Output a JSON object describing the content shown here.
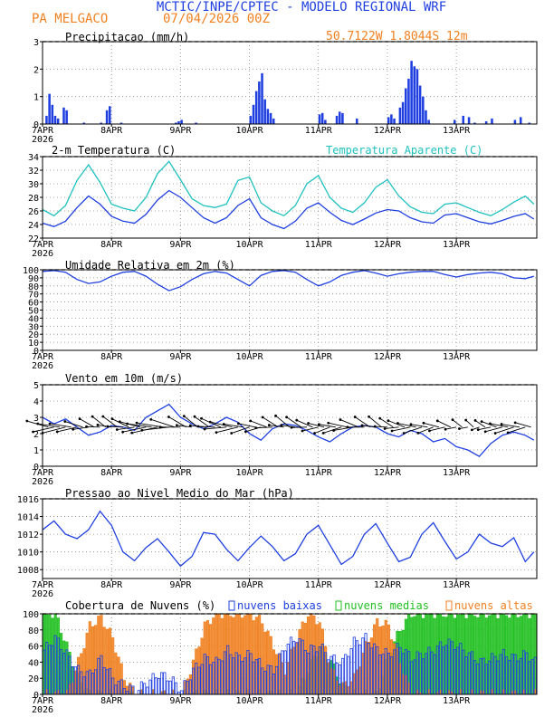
{
  "header": {
    "title": "MCTIC/INPE/CPTEC - MODELO REGIONAL WRF",
    "location": "PA MELGACO",
    "init": "07/04/2026 00Z",
    "coords": "50.7122W 1.8044S 12m"
  },
  "x_axis": {
    "ticks": [
      "7APR",
      "8APR",
      "9APR",
      "10APR",
      "11APR",
      "12APR",
      "13APR"
    ],
    "year": "2026"
  },
  "colors": {
    "blue": "#1f3fe0",
    "cyan": "#20c0c0",
    "orange": "#f08020",
    "green": "#20c020",
    "title": "#1f3fe0",
    "orange_text": "#f08020"
  },
  "chart_data": [
    {
      "type": "bar",
      "title": "Precipitacao (mm/h)",
      "ylim": [
        0,
        3
      ],
      "yticks": [
        0,
        1,
        2,
        3
      ],
      "hours_start": 0,
      "values": [
        [
          1,
          0.3
        ],
        [
          2,
          1.1
        ],
        [
          3,
          0.7
        ],
        [
          4,
          0.3
        ],
        [
          5,
          0.2
        ],
        [
          7,
          0.6
        ],
        [
          8,
          0.5
        ],
        [
          14,
          0.05
        ],
        [
          20,
          0.05
        ],
        [
          22,
          0.5
        ],
        [
          23,
          0.65
        ],
        [
          27,
          0.05
        ],
        [
          46,
          0.05
        ],
        [
          47,
          0.1
        ],
        [
          48,
          0.15
        ],
        [
          53,
          0.05
        ],
        [
          72,
          0.3
        ],
        [
          73,
          0.7
        ],
        [
          74,
          1.2
        ],
        [
          75,
          1.55
        ],
        [
          76,
          1.85
        ],
        [
          77,
          0.9
        ],
        [
          78,
          0.55
        ],
        [
          79,
          0.4
        ],
        [
          80,
          0.2
        ],
        [
          96,
          0.35
        ],
        [
          97,
          0.4
        ],
        [
          98,
          0.15
        ],
        [
          102,
          0.3
        ],
        [
          103,
          0.45
        ],
        [
          104,
          0.4
        ],
        [
          109,
          0.2
        ],
        [
          120,
          0.25
        ],
        [
          121,
          0.35
        ],
        [
          122,
          0.2
        ],
        [
          124,
          0.6
        ],
        [
          125,
          0.8
        ],
        [
          126,
          1.3
        ],
        [
          127,
          1.65
        ],
        [
          128,
          2.3
        ],
        [
          129,
          2.1
        ],
        [
          130,
          2.0
        ],
        [
          131,
          1.4
        ],
        [
          132,
          1.0
        ],
        [
          133,
          0.5
        ],
        [
          134,
          0.15
        ],
        [
          143,
          0.15
        ],
        [
          146,
          0.3
        ],
        [
          148,
          0.25
        ],
        [
          150,
          0.05
        ],
        [
          154,
          0.1
        ],
        [
          156,
          0.2
        ],
        [
          164,
          0.15
        ],
        [
          166,
          0.25
        ],
        [
          169,
          0.05
        ]
      ]
    },
    {
      "type": "line",
      "title": "2-m Temperatura (C)",
      "title2": "Temperatura Aparente (C)",
      "ylim": [
        22,
        34
      ],
      "yticks": [
        22,
        24,
        26,
        28,
        30,
        32,
        34
      ],
      "series": [
        {
          "name": "2-m Temperatura (C)",
          "color_key": "blue",
          "x": [
            0,
            4,
            8,
            12,
            16,
            20,
            24,
            28,
            32,
            36,
            40,
            44,
            48,
            52,
            56,
            60,
            64,
            68,
            72,
            76,
            80,
            84,
            88,
            92,
            96,
            100,
            104,
            108,
            112,
            116,
            120,
            124,
            128,
            132,
            136,
            140,
            144,
            148,
            152,
            156,
            160,
            164,
            168,
            171
          ],
          "y": [
            24.2,
            23.7,
            24.5,
            26.5,
            28.2,
            27.0,
            25.2,
            24.5,
            24.2,
            25.5,
            27.6,
            29.0,
            28.0,
            26.5,
            25.0,
            24.2,
            25.0,
            26.8,
            27.8,
            25.0,
            24.0,
            23.4,
            24.5,
            26.4,
            27.2,
            25.8,
            24.6,
            24.0,
            24.8,
            25.7,
            26.2,
            26.0,
            25.0,
            24.4,
            24.2,
            25.4,
            25.6,
            25.0,
            24.4,
            24.1,
            24.6,
            25.2,
            25.6,
            24.8
          ]
        },
        {
          "name": "Temperatura Aparente (C)",
          "color_key": "cyan",
          "x": [
            0,
            4,
            8,
            12,
            16,
            20,
            24,
            28,
            32,
            36,
            40,
            44,
            48,
            52,
            56,
            60,
            64,
            68,
            72,
            76,
            80,
            84,
            88,
            92,
            96,
            100,
            104,
            108,
            112,
            116,
            120,
            124,
            128,
            132,
            136,
            140,
            144,
            148,
            152,
            156,
            160,
            164,
            168,
            171
          ],
          "y": [
            26.2,
            25.3,
            26.8,
            30.5,
            32.8,
            30.2,
            27.0,
            26.4,
            26.0,
            28.0,
            31.5,
            33.3,
            30.6,
            27.8,
            26.8,
            26.5,
            27.0,
            30.5,
            31.0,
            27.2,
            26.0,
            25.3,
            26.8,
            30.0,
            31.2,
            28.0,
            26.4,
            25.8,
            27.2,
            29.5,
            30.6,
            28.2,
            26.6,
            25.8,
            25.6,
            27.0,
            27.2,
            26.5,
            25.8,
            25.3,
            26.2,
            27.3,
            28.2,
            27.0
          ]
        }
      ]
    },
    {
      "type": "line",
      "title": "Umidade Relativa em 2m (%)",
      "ylim": [
        0,
        100
      ],
      "yticks": [
        0,
        10,
        20,
        30,
        40,
        50,
        60,
        70,
        80,
        90,
        100
      ],
      "series": [
        {
          "name": "Umidade Relativa em 2m (%)",
          "color_key": "blue",
          "x": [
            0,
            4,
            8,
            12,
            16,
            20,
            24,
            28,
            32,
            36,
            40,
            44,
            48,
            52,
            56,
            60,
            64,
            68,
            72,
            76,
            80,
            84,
            88,
            92,
            96,
            100,
            104,
            108,
            112,
            116,
            120,
            124,
            128,
            132,
            136,
            140,
            144,
            148,
            152,
            156,
            160,
            164,
            168,
            171
          ],
          "y": [
            98,
            99,
            97,
            88,
            83,
            85,
            92,
            97,
            98,
            92,
            82,
            74,
            79,
            88,
            95,
            98,
            96,
            88,
            80,
            93,
            98,
            99,
            97,
            88,
            80,
            85,
            93,
            97,
            99,
            96,
            92,
            95,
            97,
            98,
            98,
            94,
            91,
            94,
            96,
            97,
            95,
            90,
            89,
            92
          ]
        }
      ]
    },
    {
      "type": "line",
      "title": "Vento em 10m (m/s)",
      "ylim": [
        0,
        5
      ],
      "yticks": [
        0,
        1,
        2,
        3,
        4,
        5
      ],
      "series": [
        {
          "name": "Vento em 10m (m/s)",
          "color_key": "blue",
          "x": [
            0,
            4,
            8,
            12,
            16,
            20,
            24,
            28,
            32,
            36,
            40,
            44,
            48,
            52,
            56,
            60,
            64,
            68,
            72,
            76,
            80,
            84,
            88,
            92,
            96,
            100,
            104,
            108,
            112,
            116,
            120,
            124,
            128,
            132,
            136,
            140,
            144,
            148,
            152,
            156,
            160,
            164,
            168,
            171
          ],
          "y": [
            3.0,
            2.6,
            2.9,
            2.4,
            1.9,
            2.1,
            2.5,
            2.4,
            2.2,
            3.0,
            3.4,
            3.8,
            3.0,
            2.6,
            2.3,
            2.6,
            3.0,
            2.7,
            2.0,
            1.6,
            2.3,
            2.6,
            2.5,
            2.2,
            1.8,
            1.5,
            2.0,
            2.4,
            2.5,
            2.4,
            2.0,
            1.8,
            2.2,
            2.0,
            1.5,
            1.7,
            1.2,
            1.0,
            0.6,
            1.4,
            1.9,
            2.1,
            1.9,
            1.6
          ]
        }
      ]
    },
    {
      "type": "line",
      "title": "Pressao ao Nivel Medio do Mar (hPa)",
      "ylim": [
        1007,
        1016
      ],
      "yticks": [
        1008,
        1010,
        1012,
        1014,
        1016
      ],
      "series": [
        {
          "name": "Pressao ao Nivel Medio do Mar (hPa)",
          "color_key": "blue",
          "x": [
            0,
            4,
            8,
            12,
            16,
            20,
            24,
            28,
            32,
            36,
            40,
            44,
            48,
            52,
            56,
            60,
            64,
            68,
            72,
            76,
            80,
            84,
            88,
            92,
            96,
            100,
            104,
            108,
            112,
            116,
            120,
            124,
            128,
            132,
            136,
            140,
            144,
            148,
            152,
            156,
            160,
            164,
            168,
            171
          ],
          "y": [
            1012.5,
            1013.5,
            1012.0,
            1011.5,
            1012.5,
            1014.6,
            1013.0,
            1010.0,
            1009.0,
            1010.5,
            1011.5,
            1010.0,
            1008.4,
            1009.5,
            1012.2,
            1012.0,
            1010.3,
            1009.0,
            1010.5,
            1011.8,
            1010.6,
            1009.0,
            1009.8,
            1012.0,
            1013.0,
            1010.8,
            1008.6,
            1009.5,
            1012.0,
            1013.2,
            1011.0,
            1008.9,
            1009.4,
            1012.0,
            1013.3,
            1011.2,
            1009.2,
            1010.0,
            1012.0,
            1011.0,
            1010.6,
            1011.6,
            1008.9,
            1010.0
          ]
        }
      ]
    },
    {
      "type": "bar",
      "title": "Cobertura de Nuvens (%)",
      "ylim": [
        0,
        100
      ],
      "yticks": [
        0,
        20,
        40,
        60,
        80,
        100
      ],
      "legend": [
        "nuvens baixas",
        "nuvens medias",
        "nuvens altas"
      ],
      "series": [
        {
          "name": "nuvens medias",
          "color_key": "green",
          "x": [
            0,
            4,
            8,
            12,
            16,
            20,
            24,
            28,
            32,
            36,
            40,
            44,
            48,
            52,
            56,
            60,
            64,
            68,
            72,
            76,
            80,
            84,
            88,
            92,
            96,
            100,
            104,
            108,
            112,
            116,
            120,
            124,
            128,
            132,
            136,
            140,
            144,
            148,
            152,
            156,
            160,
            164,
            168,
            171
          ],
          "y": [
            100,
            100,
            60,
            20,
            0,
            0,
            0,
            0,
            0,
            0,
            0,
            0,
            0,
            0,
            0,
            0,
            0,
            0,
            0,
            0,
            0,
            0,
            0,
            30,
            60,
            40,
            10,
            0,
            0,
            0,
            50,
            80,
            100,
            100,
            100,
            100,
            100,
            100,
            100,
            100,
            100,
            100,
            100,
            100
          ]
        },
        {
          "name": "nuvens altas",
          "color_key": "orange",
          "x": [
            0,
            4,
            8,
            12,
            16,
            20,
            24,
            28,
            32,
            36,
            40,
            44,
            48,
            52,
            56,
            60,
            64,
            68,
            72,
            76,
            80,
            84,
            88,
            92,
            96,
            100,
            104,
            108,
            112,
            116,
            120,
            124,
            128,
            132,
            136,
            140,
            144,
            148,
            152,
            156,
            160,
            164,
            168,
            171
          ],
          "y": [
            0,
            0,
            0,
            40,
            85,
            95,
            70,
            20,
            0,
            0,
            0,
            0,
            0,
            40,
            85,
            100,
            100,
            100,
            100,
            90,
            60,
            30,
            70,
            100,
            90,
            30,
            10,
            20,
            60,
            90,
            85,
            40,
            0,
            0,
            0,
            0,
            0,
            0,
            0,
            0,
            0,
            0,
            0,
            0
          ]
        },
        {
          "name": "nuvens baixas",
          "color_key": "blue",
          "x": [
            0,
            4,
            8,
            12,
            16,
            20,
            24,
            28,
            32,
            36,
            40,
            44,
            48,
            52,
            56,
            60,
            64,
            68,
            72,
            76,
            80,
            84,
            88,
            92,
            96,
            100,
            104,
            108,
            112,
            116,
            120,
            124,
            128,
            132,
            136,
            140,
            144,
            148,
            152,
            156,
            160,
            164,
            168,
            171
          ],
          "y": [
            55,
            70,
            50,
            30,
            25,
            45,
            20,
            10,
            5,
            15,
            25,
            20,
            5,
            30,
            45,
            40,
            55,
            45,
            50,
            35,
            30,
            60,
            70,
            55,
            60,
            45,
            40,
            65,
            70,
            55,
            50,
            60,
            45,
            50,
            55,
            65,
            60,
            50,
            40,
            45,
            50,
            45,
            50,
            40
          ]
        }
      ]
    }
  ]
}
